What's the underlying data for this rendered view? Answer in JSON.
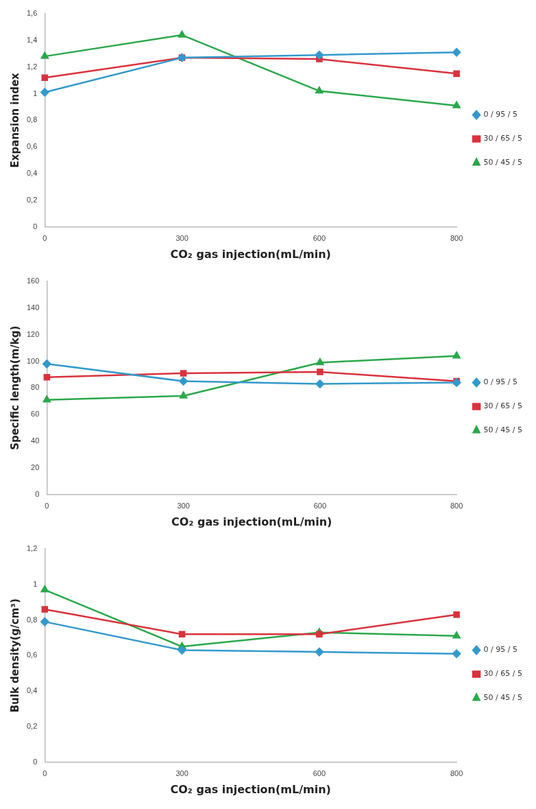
{
  "chart_data": [
    {
      "type": "line",
      "xlabel": "CO₂ gas injection(mL/min)",
      "ylabel": "Expansion index",
      "categories": [
        "0",
        "300",
        "600",
        "800"
      ],
      "ylim": [
        0,
        1.6
      ],
      "yticks": [
        0,
        {
          "value": 0.2,
          "label": "0,2"
        },
        {
          "value": 0.4,
          "label": "0,4"
        },
        {
          "value": 0.6,
          "label": "0,6"
        },
        {
          "value": 0.8,
          "label": "0,8"
        },
        1,
        {
          "value": 1.2,
          "label": "1,2"
        },
        {
          "value": 1.4,
          "label": "1,4"
        },
        {
          "value": 1.6,
          "label": "1,6"
        }
      ],
      "grid": false,
      "legend": "right",
      "line_style": "solid",
      "series": [
        {
          "name": "0 / 95 / 5",
          "color": "#3399cc",
          "marker": "diamond",
          "values": [
            1.01,
            1.27,
            1.29,
            1.31
          ]
        },
        {
          "name": "30 / 65 / 5",
          "color": "#d9323c",
          "marker": "square",
          "values": [
            1.12,
            1.27,
            1.26,
            1.15
          ]
        },
        {
          "name": "50 / 45 / 5",
          "color": "#2aa84a",
          "marker": "triangle",
          "values": [
            1.28,
            1.44,
            1.02,
            0.91
          ]
        }
      ]
    },
    {
      "type": "line",
      "xlabel": "CO₂ gas injection(mL/min)",
      "ylabel": "Specific length(m/kg)",
      "categories": [
        "0",
        "300",
        "600",
        "800"
      ],
      "ylim": [
        0,
        160
      ],
      "yticks": [
        0,
        20,
        40,
        60,
        80,
        100,
        120,
        140,
        160
      ],
      "grid": false,
      "legend": "right",
      "line_style": "solid",
      "series": [
        {
          "name": "0 / 95 / 5",
          "color": "#3399cc",
          "marker": "diamond",
          "values": [
            98,
            85,
            83,
            84
          ]
        },
        {
          "name": "30 / 65 / 5",
          "color": "#d9323c",
          "marker": "square",
          "values": [
            88,
            91,
            92,
            85
          ]
        },
        {
          "name": "50 / 45 / 5",
          "color": "#2aa84a",
          "marker": "triangle",
          "values": [
            71,
            74,
            99,
            104
          ]
        }
      ]
    },
    {
      "type": "line",
      "xlabel": "CO₂ gas injection(mL/min)",
      "ylabel": "Bulk density(g/cm³)",
      "categories": [
        "0",
        "300",
        "600",
        "800"
      ],
      "ylim": [
        0,
        1.2
      ],
      "yticks": [
        0,
        {
          "value": 0.2,
          "label": "0,2"
        },
        {
          "value": 0.4,
          "label": "0,4"
        },
        {
          "value": 0.6,
          "label": "0,6"
        },
        {
          "value": 0.8,
          "label": "0,8"
        },
        1,
        {
          "value": 1.2,
          "label": "1,2"
        }
      ],
      "grid": false,
      "legend": "right",
      "line_style": "solid",
      "series": [
        {
          "name": "0 / 95 / 5",
          "color": "#3399cc",
          "marker": "diamond",
          "values": [
            0.79,
            0.63,
            0.62,
            0.61
          ]
        },
        {
          "name": "30 / 65 / 5",
          "color": "#d9323c",
          "marker": "square",
          "values": [
            0.86,
            0.72,
            0.72,
            0.83
          ]
        },
        {
          "name": "50 / 45 / 5",
          "color": "#2aa84a",
          "marker": "triangle",
          "values": [
            0.97,
            0.65,
            0.73,
            0.71
          ]
        }
      ]
    }
  ]
}
